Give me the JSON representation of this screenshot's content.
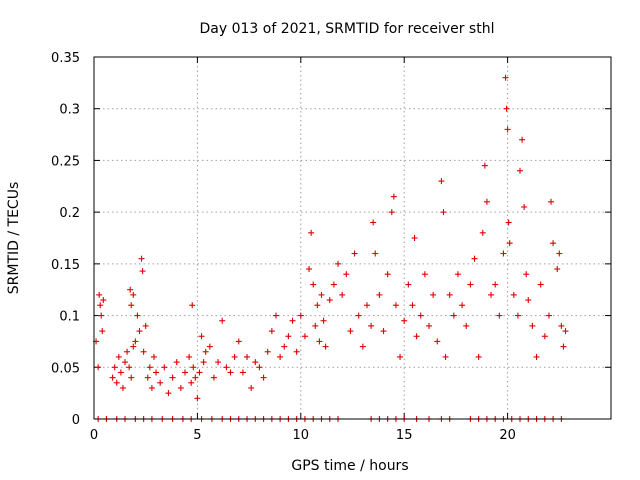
{
  "chart_data": {
    "type": "scatter",
    "title": "Day 013 of 2021, SRMTID for receiver sthl",
    "xlabel": "GPS time / hours",
    "ylabel": "SRMTID / TECUs",
    "xlim": [
      0,
      25
    ],
    "ylim": [
      0,
      0.35
    ],
    "xticks": [
      0,
      5,
      10,
      15,
      20
    ],
    "xtick_labels": [
      "0",
      "5",
      "10",
      "15",
      "20"
    ],
    "yticks": [
      0,
      0.05,
      0.1,
      0.15,
      0.2,
      0.25,
      0.3,
      0.35
    ],
    "ytick_labels": [
      "0",
      "0.05",
      "0.1",
      "0.15",
      "0.2",
      "0.25",
      "0.3",
      "0.35"
    ],
    "grid": true,
    "marker": "+",
    "color": "#e00000",
    "series": [
      {
        "name": "SRMTID",
        "points": [
          [
            0.1,
            0.075
          ],
          [
            0.2,
            0.05
          ],
          [
            0.25,
            0.12
          ],
          [
            0.3,
            0.11
          ],
          [
            0.35,
            0.1
          ],
          [
            0.4,
            0.085
          ],
          [
            0.45,
            0.115
          ],
          [
            0.9,
            0.04
          ],
          [
            1.0,
            0.05
          ],
          [
            1.1,
            0.035
          ],
          [
            1.2,
            0.06
          ],
          [
            1.3,
            0.045
          ],
          [
            1.4,
            0.03
          ],
          [
            1.5,
            0.055
          ],
          [
            1.6,
            0.065
          ],
          [
            1.7,
            0.05
          ],
          [
            1.8,
            0.04
          ],
          [
            1.9,
            0.07
          ],
          [
            1.75,
            0.125
          ],
          [
            1.8,
            0.11
          ],
          [
            1.9,
            0.12
          ],
          [
            2.0,
            0.075
          ],
          [
            2.1,
            0.1
          ],
          [
            2.2,
            0.085
          ],
          [
            2.3,
            0.155
          ],
          [
            2.35,
            0.143
          ],
          [
            2.4,
            0.065
          ],
          [
            2.5,
            0.09
          ],
          [
            2.6,
            0.04
          ],
          [
            2.7,
            0.05
          ],
          [
            2.8,
            0.03
          ],
          [
            2.9,
            0.06
          ],
          [
            3.0,
            0.045
          ],
          [
            3.2,
            0.035
          ],
          [
            3.4,
            0.05
          ],
          [
            3.6,
            0.025
          ],
          [
            3.8,
            0.04
          ],
          [
            4.0,
            0.055
          ],
          [
            4.2,
            0.03
          ],
          [
            4.4,
            0.045
          ],
          [
            4.6,
            0.06
          ],
          [
            4.7,
            0.035
          ],
          [
            4.8,
            0.05
          ],
          [
            4.9,
            0.04
          ],
          [
            5.0,
            0.02
          ],
          [
            5.1,
            0.045
          ],
          [
            5.2,
            0.08
          ],
          [
            5.3,
            0.055
          ],
          [
            5.4,
            0.065
          ],
          [
            4.75,
            0.11
          ],
          [
            5.6,
            0.07
          ],
          [
            5.8,
            0.04
          ],
          [
            6.0,
            0.055
          ],
          [
            6.2,
            0.095
          ],
          [
            6.4,
            0.05
          ],
          [
            6.6,
            0.045
          ],
          [
            6.8,
            0.06
          ],
          [
            7.0,
            0.075
          ],
          [
            7.2,
            0.045
          ],
          [
            7.4,
            0.06
          ],
          [
            7.6,
            0.03
          ],
          [
            7.8,
            0.055
          ],
          [
            8.0,
            0.05
          ],
          [
            8.2,
            0.04
          ],
          [
            8.4,
            0.065
          ],
          [
            8.6,
            0.085
          ],
          [
            8.8,
            0.1
          ],
          [
            9.0,
            0.06
          ],
          [
            9.2,
            0.07
          ],
          [
            9.4,
            0.08
          ],
          [
            9.6,
            0.095
          ],
          [
            9.8,
            0.065
          ],
          [
            10.0,
            0.1
          ],
          [
            10.2,
            0.08
          ],
          [
            10.4,
            0.145
          ],
          [
            10.5,
            0.18
          ],
          [
            10.6,
            0.13
          ],
          [
            10.7,
            0.09
          ],
          [
            10.8,
            0.11
          ],
          [
            10.9,
            0.075
          ],
          [
            11.0,
            0.12
          ],
          [
            11.1,
            0.095
          ],
          [
            11.2,
            0.07
          ],
          [
            11.4,
            0.115
          ],
          [
            11.6,
            0.13
          ],
          [
            11.8,
            0.15
          ],
          [
            12.0,
            0.12
          ],
          [
            12.2,
            0.14
          ],
          [
            12.4,
            0.085
          ],
          [
            12.6,
            0.16
          ],
          [
            12.8,
            0.1
          ],
          [
            13.0,
            0.07
          ],
          [
            13.2,
            0.11
          ],
          [
            13.4,
            0.09
          ],
          [
            13.5,
            0.19
          ],
          [
            13.6,
            0.16
          ],
          [
            13.8,
            0.12
          ],
          [
            14.0,
            0.085
          ],
          [
            14.2,
            0.14
          ],
          [
            14.4,
            0.2
          ],
          [
            14.5,
            0.215
          ],
          [
            14.6,
            0.11
          ],
          [
            14.8,
            0.06
          ],
          [
            15.0,
            0.095
          ],
          [
            15.2,
            0.13
          ],
          [
            15.4,
            0.11
          ],
          [
            15.5,
            0.175
          ],
          [
            15.6,
            0.08
          ],
          [
            15.8,
            0.1
          ],
          [
            16.0,
            0.14
          ],
          [
            16.2,
            0.09
          ],
          [
            16.4,
            0.12
          ],
          [
            16.6,
            0.075
          ],
          [
            16.8,
            0.23
          ],
          [
            16.9,
            0.2
          ],
          [
            17.0,
            0.06
          ],
          [
            17.2,
            0.12
          ],
          [
            17.4,
            0.1
          ],
          [
            17.6,
            0.14
          ],
          [
            17.8,
            0.11
          ],
          [
            18.0,
            0.09
          ],
          [
            18.2,
            0.13
          ],
          [
            18.4,
            0.155
          ],
          [
            18.6,
            0.06
          ],
          [
            18.8,
            0.18
          ],
          [
            18.9,
            0.245
          ],
          [
            19.0,
            0.21
          ],
          [
            19.2,
            0.12
          ],
          [
            19.4,
            0.13
          ],
          [
            19.6,
            0.1
          ],
          [
            19.8,
            0.16
          ],
          [
            19.9,
            0.33
          ],
          [
            19.95,
            0.3
          ],
          [
            20.0,
            0.28
          ],
          [
            20.05,
            0.19
          ],
          [
            20.1,
            0.17
          ],
          [
            20.3,
            0.12
          ],
          [
            20.5,
            0.1
          ],
          [
            20.6,
            0.24
          ],
          [
            20.7,
            0.27
          ],
          [
            20.8,
            0.205
          ],
          [
            20.9,
            0.14
          ],
          [
            21.0,
            0.115
          ],
          [
            21.2,
            0.09
          ],
          [
            21.4,
            0.06
          ],
          [
            21.6,
            0.13
          ],
          [
            21.8,
            0.08
          ],
          [
            22.0,
            0.1
          ],
          [
            22.1,
            0.21
          ],
          [
            22.2,
            0.17
          ],
          [
            22.4,
            0.145
          ],
          [
            22.5,
            0.16
          ],
          [
            22.6,
            0.09
          ],
          [
            22.7,
            0.07
          ],
          [
            22.8,
            0.085
          ]
        ],
        "zero_points_x": [
          0.2,
          0.6,
          1.1,
          1.5,
          2.0,
          2.4,
          2.8,
          3.3,
          3.8,
          4.3,
          4.7,
          5.2,
          5.7,
          6.2,
          6.6,
          7.0,
          7.4,
          7.8,
          8.2,
          8.6,
          9.0,
          9.4,
          9.8,
          10.2,
          10.6,
          11.0,
          11.4,
          11.8,
          13.4,
          13.8,
          14.2,
          14.6,
          15.0,
          15.6,
          16.2,
          16.8,
          17.2,
          18.2,
          18.6,
          19.0,
          19.4,
          19.8,
          20.2,
          20.6,
          21.0,
          21.4,
          21.8,
          22.2,
          22.6
        ]
      }
    ]
  }
}
